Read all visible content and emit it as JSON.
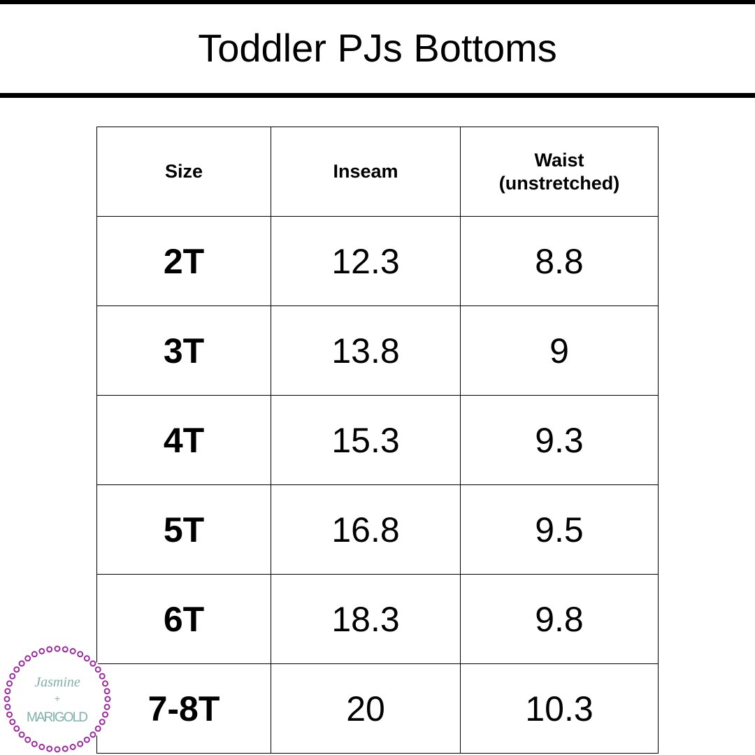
{
  "title": "Toddler PJs Bottoms",
  "table": {
    "headers": [
      "Size",
      "Inseam",
      "Waist (unstretched)"
    ],
    "rows": [
      [
        "2T",
        "12.3",
        "8.8"
      ],
      [
        "3T",
        "13.8",
        "9"
      ],
      [
        "4T",
        "15.3",
        "9.3"
      ],
      [
        "5T",
        "16.8",
        "9.5"
      ],
      [
        "6T",
        "18.3",
        "9.8"
      ],
      [
        "7-8T",
        "20",
        "10.3"
      ]
    ]
  },
  "logo": {
    "line1": "Jasmine",
    "line2": "+",
    "line3": "MARIGOLD",
    "ring_color": "#9b2a9e",
    "text_color": "#7fb1a8"
  }
}
